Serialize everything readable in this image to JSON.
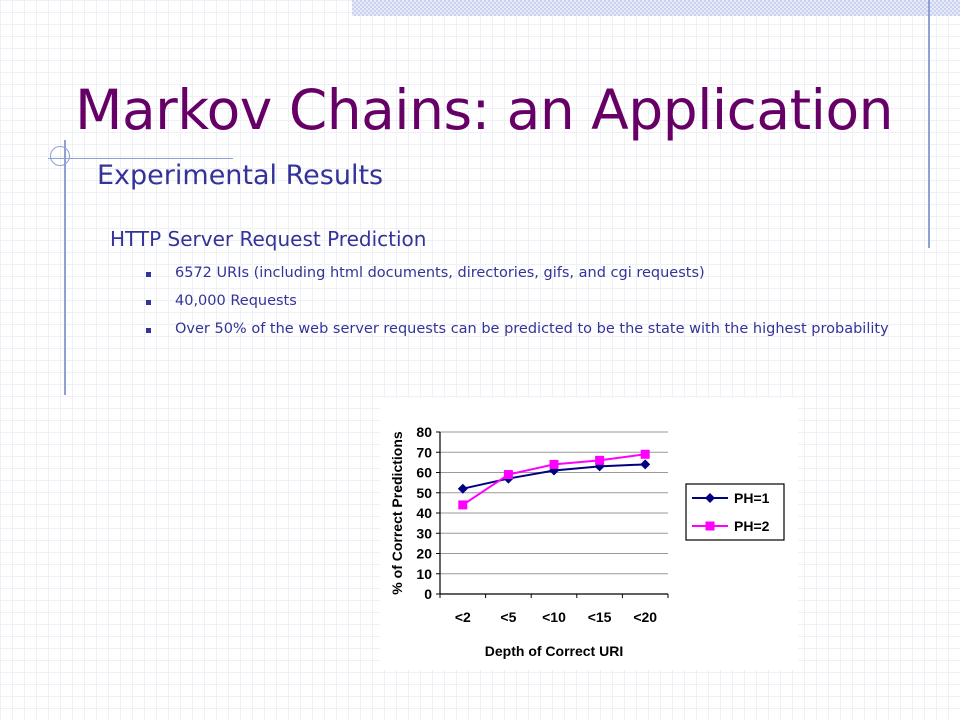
{
  "slide": {
    "title": "Markov Chains: an Application",
    "subtitle": "Experimental Results",
    "section_heading": "HTTP Server Request Prediction",
    "bullets": [
      "6572 URIs (including html documents, directories, gifs, and cgi requests)",
      "40,000 Requests",
      "Over 50% of the web server requests can be predicted to be the state with the highest probability"
    ]
  },
  "colors": {
    "title": "#660066",
    "text": "#333399",
    "series_ph1": "#000080",
    "series_ph2": "#ff00ff"
  },
  "chart_data": {
    "type": "line",
    "title": "",
    "xlabel": "Depth of Correct URI",
    "ylabel": "% of Correct Predictions",
    "categories": [
      "<2",
      "<5",
      "<10",
      "<15",
      "<20"
    ],
    "ylim": [
      0,
      80
    ],
    "yticks": [
      "0",
      "10",
      "20",
      "30",
      "40",
      "50",
      "60",
      "70",
      "80"
    ],
    "grid": true,
    "legend_position": "right",
    "series": [
      {
        "name": "PH=1",
        "marker": "diamond",
        "values": [
          52,
          57,
          61,
          63,
          64
        ]
      },
      {
        "name": "PH=2",
        "marker": "square",
        "values": [
          44,
          59,
          64,
          66,
          69
        ]
      }
    ]
  }
}
